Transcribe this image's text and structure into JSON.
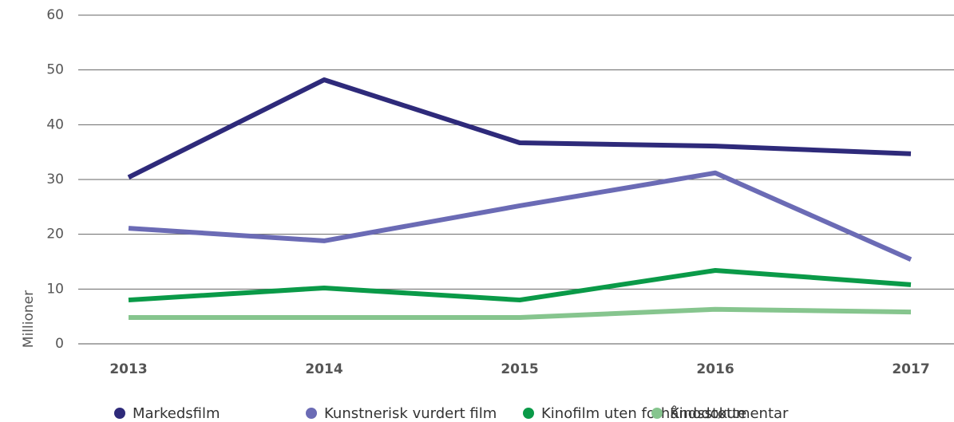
{
  "chart_data": {
    "type": "line",
    "y_label": "Millioner",
    "categories": [
      "2013",
      "2014",
      "2015",
      "2016",
      "2017"
    ],
    "series": [
      {
        "name": "Markedsfilm",
        "color": "#2e2a7a",
        "values": [
          30.4,
          48.2,
          36.7,
          36.1,
          34.7
        ]
      },
      {
        "name": "Kunstnerisk vurdert film",
        "color": "#6b6bb5",
        "values": [
          21.1,
          18.8,
          25.2,
          31.2,
          15.4
        ]
      },
      {
        "name": "Kinofilm uten forhåndsstøtte",
        "color": "#0a9a48",
        "values": [
          8.0,
          10.2,
          8.0,
          13.4,
          10.8
        ]
      },
      {
        "name": "Kinodokumentar",
        "color": "#86c58e",
        "values": [
          4.8,
          4.8,
          4.8,
          6.3,
          5.8
        ]
      }
    ],
    "ylim": [
      0,
      60
    ],
    "yticks": [
      0,
      10,
      20,
      30,
      40,
      50,
      60
    ],
    "grid": true
  }
}
